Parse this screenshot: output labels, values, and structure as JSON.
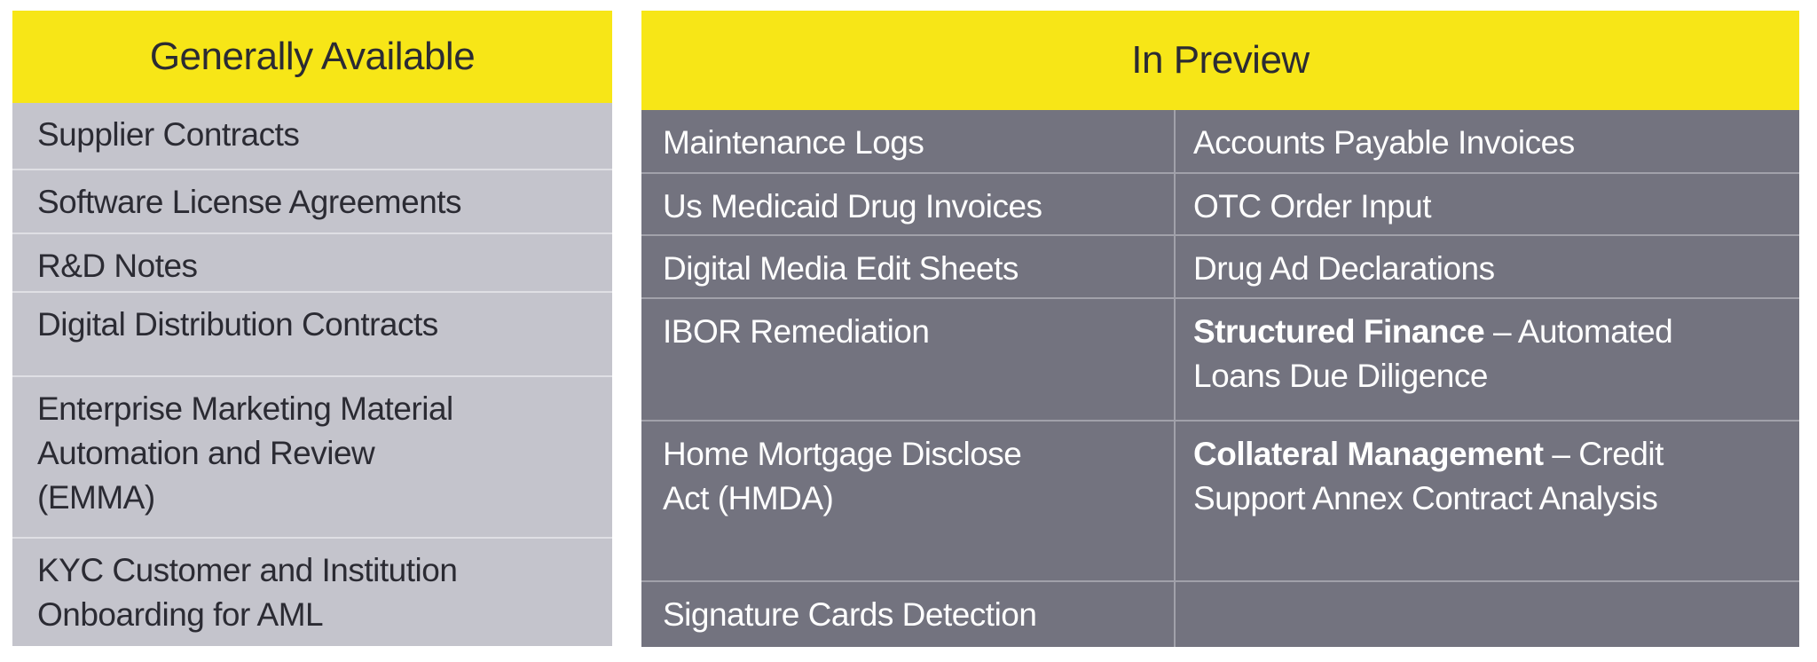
{
  "colors": {
    "yellow": "#F7E617",
    "light_gray": "#C4C4CC",
    "dark_gray": "#73737F",
    "ink": "#2B2B33",
    "white_text": "#FFFFFF",
    "light_divider": "#DFDFE4",
    "dark_divider": "#A1A1AA"
  },
  "left_table": {
    "header": "Generally Available",
    "rows": [
      {
        "text": "Supplier Contracts"
      },
      {
        "text": "Software License Agreements"
      },
      {
        "text": "R&D Notes"
      },
      {
        "text": "Digital Distribution Contracts"
      },
      {
        "text": "Enterprise Marketing Material\nAutomation and Review\n(EMMA)"
      },
      {
        "text": "KYC Customer and Institution\nOnboarding for AML"
      }
    ]
  },
  "right_table": {
    "header": "In Preview",
    "rows": [
      {
        "left": {
          "bold": "",
          "text": "Maintenance Logs"
        },
        "right": {
          "bold": "",
          "text": "Accounts Payable Invoices"
        }
      },
      {
        "left": {
          "bold": "",
          "text": "Us Medicaid Drug Invoices"
        },
        "right": {
          "bold": "",
          "text": "OTC Order Input"
        }
      },
      {
        "left": {
          "bold": "",
          "text": "Digital Media Edit Sheets"
        },
        "right": {
          "bold": "",
          "text": "Drug Ad Declarations"
        }
      },
      {
        "left": {
          "bold": "",
          "text": "IBOR Remediation"
        },
        "right": {
          "bold": "Structured Finance",
          "text": " – Automated\nLoans Due Diligence"
        }
      },
      {
        "left": {
          "bold": "",
          "text": "Home Mortgage Disclose\nAct (HMDA)"
        },
        "right": {
          "bold": "Collateral Management",
          "text": " – Credit\nSupport Annex Contract Analysis"
        }
      },
      {
        "left": {
          "bold": "",
          "text": "Signature Cards Detection"
        },
        "right": {
          "bold": "",
          "text": ""
        }
      }
    ]
  }
}
